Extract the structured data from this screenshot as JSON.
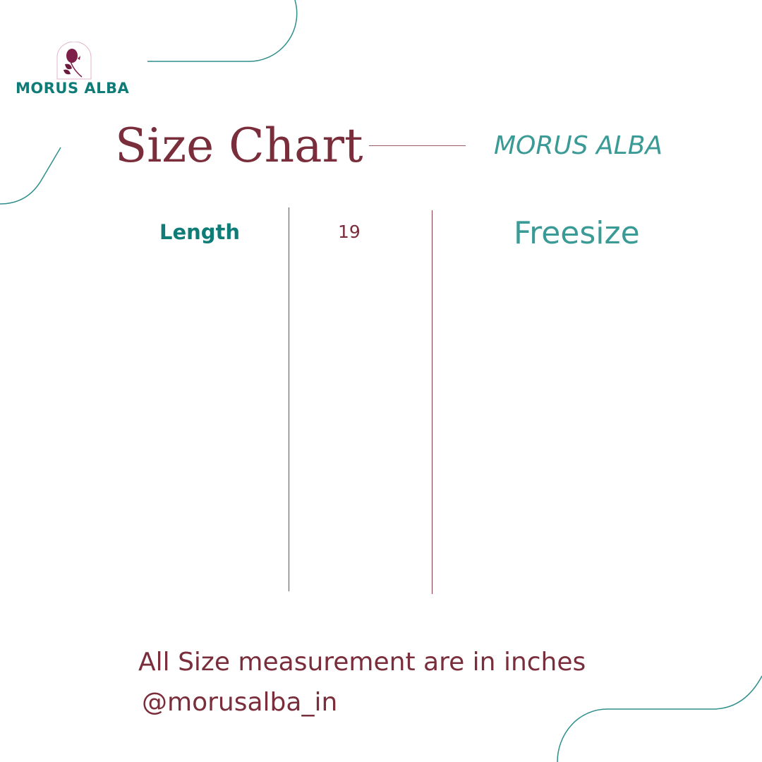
{
  "brand": {
    "name": "MORUS ALBA",
    "logo_icon": "mulberry-branch-icon"
  },
  "header": {
    "title": "Size Chart",
    "subtitle": "MORUS ALBA"
  },
  "table": {
    "row_label": "Length",
    "value": "19",
    "size": "Freesize"
  },
  "footer": {
    "note": "All Size measurement are in inches",
    "handle": "@morusalba_in"
  },
  "colors": {
    "teal": "#0f7c77",
    "maroon": "#7a2e3b",
    "light_teal": "#3a9a96"
  }
}
